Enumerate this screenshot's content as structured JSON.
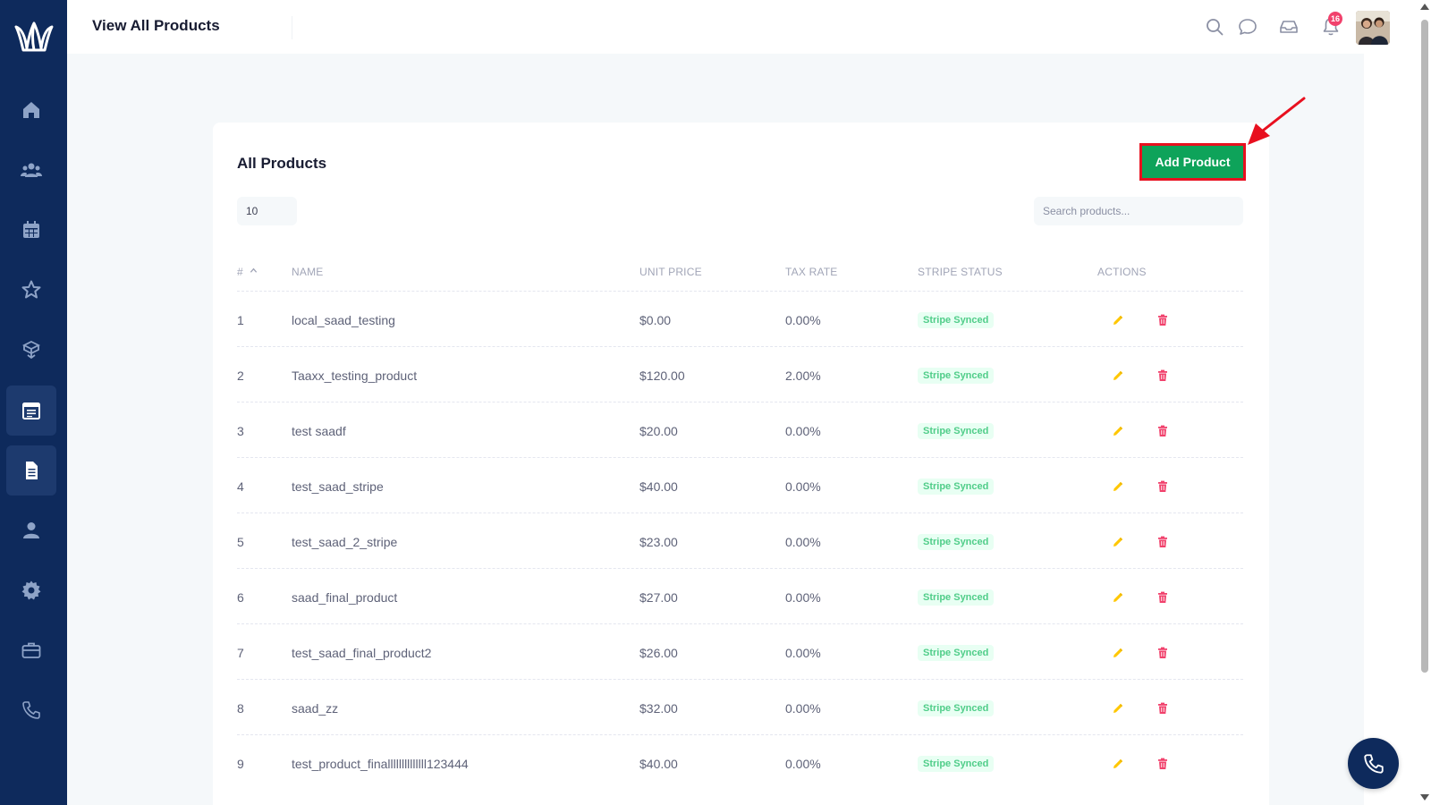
{
  "header": {
    "title": "View All Products",
    "notification_count": "16"
  },
  "sidebar": {
    "items": [
      {
        "name": "home"
      },
      {
        "name": "users"
      },
      {
        "name": "calendar"
      },
      {
        "name": "star"
      },
      {
        "name": "box"
      },
      {
        "name": "calendar-list",
        "active": true
      },
      {
        "name": "document",
        "active": true
      },
      {
        "name": "user"
      },
      {
        "name": "gear"
      },
      {
        "name": "briefcase"
      },
      {
        "name": "phone"
      }
    ]
  },
  "card": {
    "title": "All Products",
    "add_button": "Add Product",
    "page_size": "10",
    "search_placeholder": "Search products..."
  },
  "table": {
    "columns": [
      "#",
      "Name",
      "Unit Price",
      "Tax Rate",
      "Stripe Status",
      "Actions"
    ],
    "rows": [
      {
        "num": "1",
        "name": "local_saad_testing",
        "price": "$0.00",
        "tax": "0.00%",
        "status": "Stripe Synced"
      },
      {
        "num": "2",
        "name": "Taaxx_testing_product",
        "price": "$120.00",
        "tax": "2.00%",
        "status": "Stripe Synced"
      },
      {
        "num": "3",
        "name": "test saadf",
        "price": "$20.00",
        "tax": "0.00%",
        "status": "Stripe Synced"
      },
      {
        "num": "4",
        "name": "test_saad_stripe",
        "price": "$40.00",
        "tax": "0.00%",
        "status": "Stripe Synced"
      },
      {
        "num": "5",
        "name": "test_saad_2_stripe",
        "price": "$23.00",
        "tax": "0.00%",
        "status": "Stripe Synced"
      },
      {
        "num": "6",
        "name": "saad_final_product",
        "price": "$27.00",
        "tax": "0.00%",
        "status": "Stripe Synced"
      },
      {
        "num": "7",
        "name": "test_saad_final_product2",
        "price": "$26.00",
        "tax": "0.00%",
        "status": "Stripe Synced"
      },
      {
        "num": "8",
        "name": "saad_zz",
        "price": "$32.00",
        "tax": "0.00%",
        "status": "Stripe Synced"
      },
      {
        "num": "9",
        "name": "test_product_finallllllllllllll123444",
        "price": "$40.00",
        "tax": "0.00%",
        "status": "Stripe Synced"
      }
    ]
  },
  "colors": {
    "sidebar": "#0e2a5c",
    "primary_button": "#0ea35a",
    "highlight": "#e8101f",
    "badge_text": "#50cd89",
    "edit_icon": "#ffc700",
    "delete_icon": "#f1416c"
  }
}
